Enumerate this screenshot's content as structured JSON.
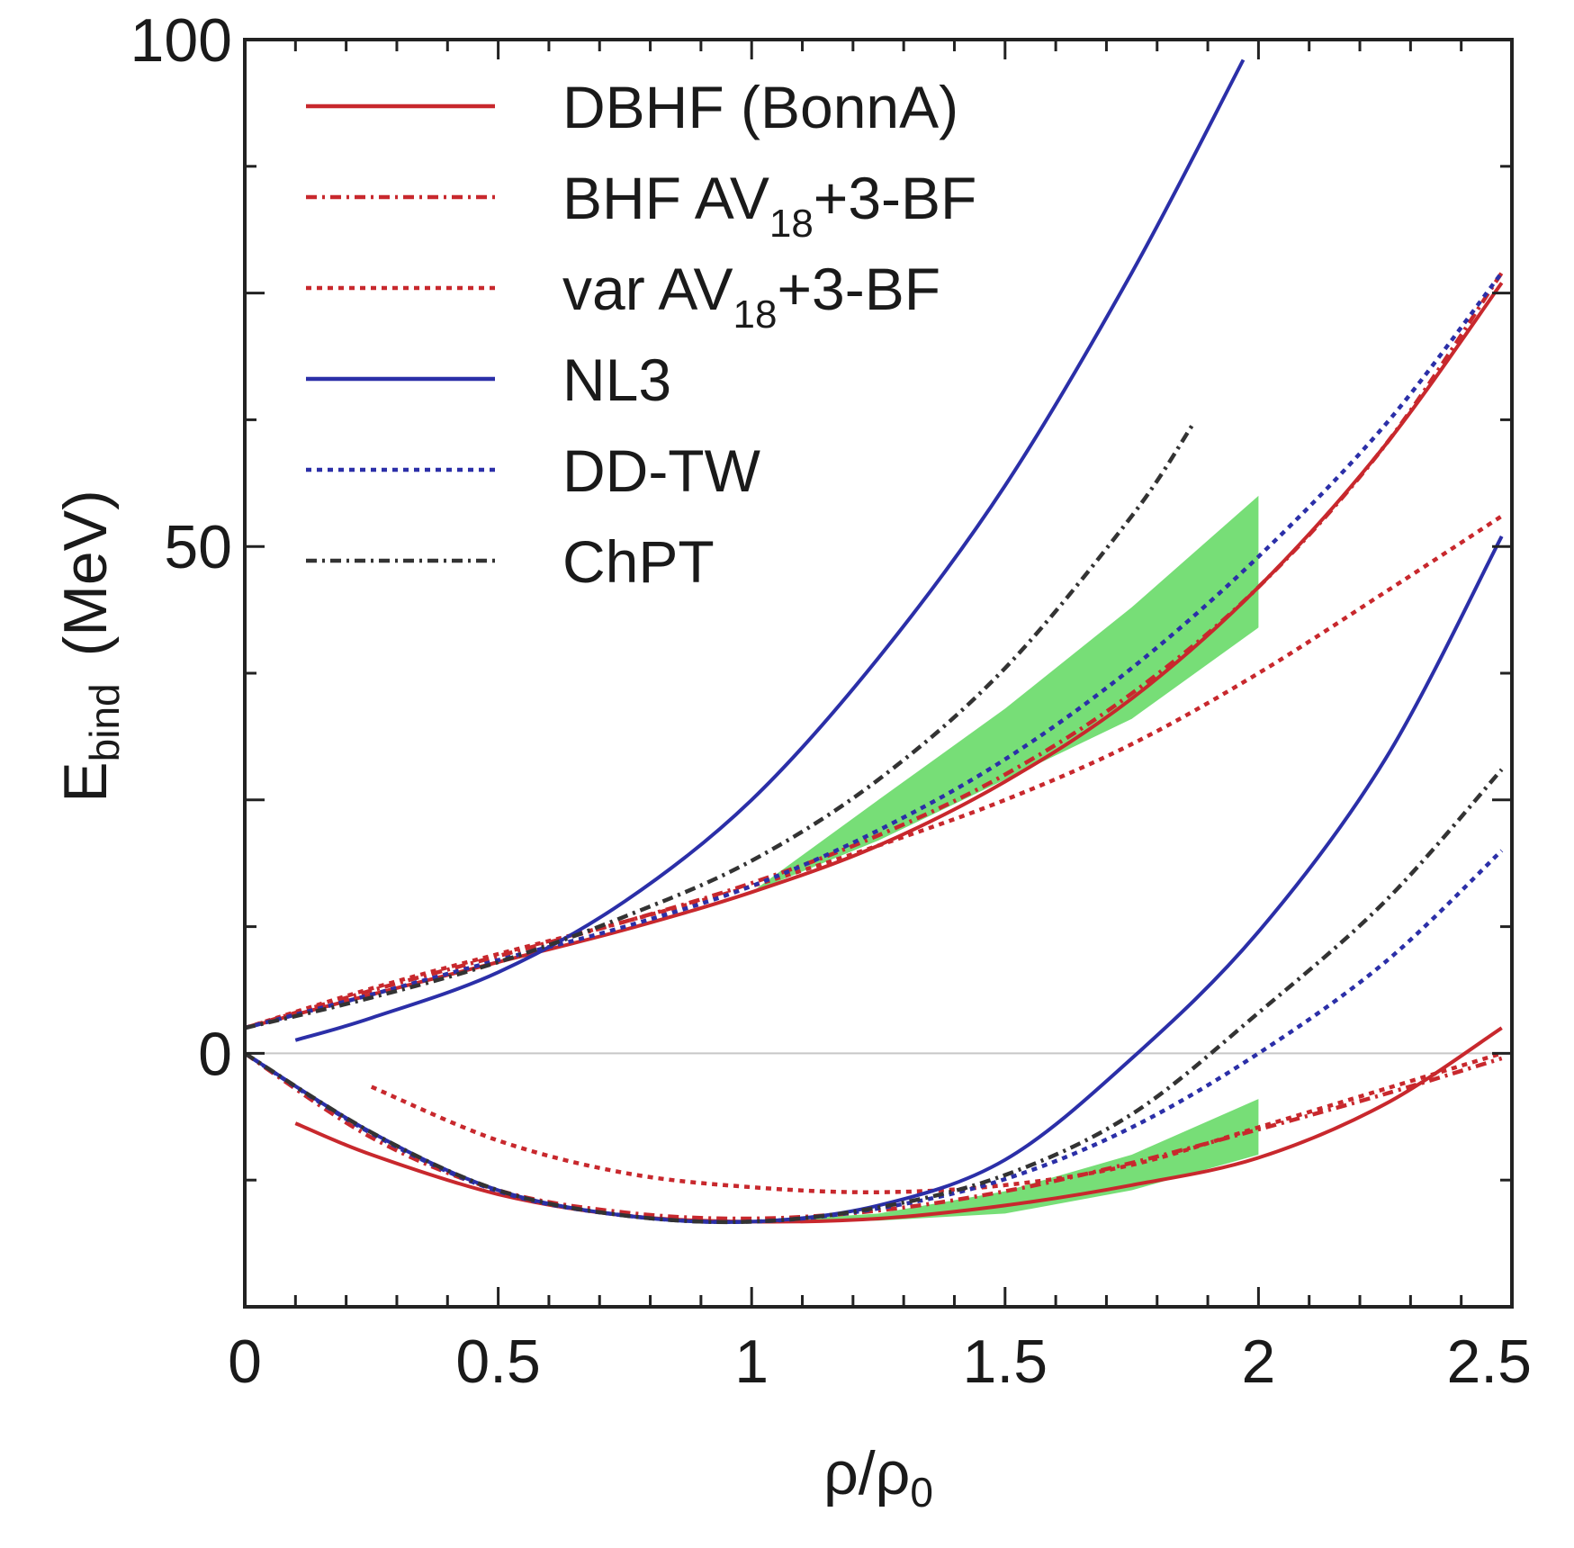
{
  "chart_data": {
    "type": "line",
    "xlabel": {
      "base": "ρ/ρ",
      "sub": "0"
    },
    "ylabel": {
      "base": "E",
      "sub": "bind",
      "unit": "(MeV)"
    },
    "xlim": [
      0,
      2.5
    ],
    "ylim": [
      -25,
      100
    ],
    "x_ticks": [
      {
        "value": 0,
        "label": "0"
      },
      {
        "value": 0.5,
        "label": "0.5"
      },
      {
        "value": 1,
        "label": "1"
      },
      {
        "value": 1.5,
        "label": "1.5"
      },
      {
        "value": 2,
        "label": "2"
      },
      {
        "value": 2.5,
        "label": "2.5"
      }
    ],
    "y_ticks": [
      {
        "value": 0,
        "label": "0"
      },
      {
        "value": 50,
        "label": "50"
      },
      {
        "value": 100,
        "label": "100"
      }
    ],
    "zero_line": true,
    "legend": {
      "position": "top-left",
      "items": [
        {
          "base": "DBHF (BonnA)",
          "sub": "",
          "rest": "",
          "color": "#c8282d",
          "dash": "solid"
        },
        {
          "base": "BHF AV",
          "sub": "18",
          "rest": "+3-BF",
          "color": "#c8282d",
          "dash": "dashdot"
        },
        {
          "base": "var AV",
          "sub": "18",
          "rest": "+3-BF",
          "color": "#c8282d",
          "dash": "dotted"
        },
        {
          "base": "NL3",
          "sub": "",
          "rest": "",
          "color": "#2b2fa8",
          "dash": "solid"
        },
        {
          "base": "DD-TW",
          "sub": "",
          "rest": "",
          "color": "#2b2fa8",
          "dash": "dotted"
        },
        {
          "base": "ChPT",
          "sub": "",
          "rest": "",
          "color": "#333333",
          "dash": "dashdot"
        }
      ]
    },
    "bands": [
      {
        "name": "neutron-matter-band",
        "color": "#5fd85f",
        "upper": [
          [
            1.0,
            15.9
          ],
          [
            1.25,
            25
          ],
          [
            1.5,
            34
          ],
          [
            1.75,
            44
          ],
          [
            2.0,
            55
          ]
        ],
        "lower": [
          [
            1.0,
            15.9
          ],
          [
            1.25,
            21
          ],
          [
            1.5,
            27
          ],
          [
            1.75,
            33
          ],
          [
            2.0,
            42
          ]
        ]
      },
      {
        "name": "symmetric-matter-band",
        "color": "#5fd85f",
        "upper": [
          [
            1.0,
            -16.6
          ],
          [
            1.25,
            -15.8
          ],
          [
            1.5,
            -13.6
          ],
          [
            1.75,
            -10
          ],
          [
            2.0,
            -4.5
          ]
        ],
        "lower": [
          [
            1.0,
            -16.6
          ],
          [
            1.25,
            -16.5
          ],
          [
            1.5,
            -15.8
          ],
          [
            1.75,
            -13.5
          ],
          [
            2.0,
            -10
          ]
        ]
      }
    ],
    "series": [
      {
        "legend_index": 0,
        "branch": "neutron",
        "color": "#c8282d",
        "dash": "solid",
        "x": [
          0.0,
          0.25,
          0.5,
          0.75,
          1.0,
          1.25,
          1.5,
          1.75,
          2.0,
          2.25,
          2.48
        ],
        "y": [
          2.5,
          5.8,
          9.0,
          12.2,
          15.9,
          20.5,
          26.8,
          35.0,
          46.0,
          60.0,
          76.0
        ]
      },
      {
        "legend_index": 1,
        "branch": "neutron",
        "color": "#c8282d",
        "dash": "dashdot",
        "x": [
          0.0,
          0.25,
          0.5,
          0.75,
          1.0,
          1.25,
          1.5,
          1.75,
          2.0,
          2.25,
          2.48
        ],
        "y": [
          2.5,
          6.2,
          9.6,
          13.0,
          16.8,
          21.5,
          27.5,
          35.5,
          46.0,
          60.0,
          77.0
        ]
      },
      {
        "legend_index": 2,
        "branch": "neutron",
        "color": "#c8282d",
        "dash": "dotted",
        "x": [
          0.0,
          0.25,
          0.5,
          0.75,
          1.0,
          1.25,
          1.5,
          1.75,
          2.0,
          2.25,
          2.48
        ],
        "y": [
          2.5,
          6.4,
          9.8,
          13.0,
          16.5,
          20.5,
          25.0,
          30.5,
          37.5,
          45.5,
          53.0
        ]
      },
      {
        "legend_index": 3,
        "branch": "neutron",
        "color": "#2b2fa8",
        "dash": "solid",
        "x": [
          0.1,
          0.25,
          0.5,
          0.75,
          1.0,
          1.25,
          1.5,
          1.75,
          1.97
        ],
        "y": [
          1.3,
          3.5,
          8.0,
          15.0,
          25.0,
          39.0,
          56.0,
          77.0,
          98.0
        ]
      },
      {
        "legend_index": 4,
        "branch": "neutron",
        "color": "#2b2fa8",
        "dash": "dotted",
        "x": [
          0.0,
          0.25,
          0.5,
          0.75,
          1.0,
          1.25,
          1.5,
          1.75,
          2.0,
          2.25,
          2.48
        ],
        "y": [
          2.5,
          5.8,
          9.2,
          12.5,
          16.5,
          22.0,
          29.0,
          38.0,
          49.0,
          62.0,
          77.0
        ]
      },
      {
        "legend_index": 5,
        "branch": "neutron",
        "color": "#333333",
        "dash": "dashdot",
        "x": [
          0.0,
          0.25,
          0.5,
          0.75,
          1.0,
          1.25,
          1.5,
          1.75,
          1.87
        ],
        "y": [
          2.5,
          5.5,
          9.0,
          13.5,
          19.0,
          27.0,
          38.0,
          53.0,
          62.0
        ]
      },
      {
        "legend_index": 0,
        "branch": "symmetric",
        "color": "#c8282d",
        "dash": "solid",
        "x": [
          0.1,
          0.25,
          0.5,
          0.75,
          1.0,
          1.25,
          1.5,
          1.75,
          2.0,
          2.25,
          2.48
        ],
        "y": [
          -6.9,
          -10.0,
          -13.9,
          -16.0,
          -16.6,
          -16.3,
          -15.0,
          -13.0,
          -10.3,
          -5.0,
          2.5
        ]
      },
      {
        "legend_index": 1,
        "branch": "symmetric",
        "color": "#c8282d",
        "dash": "dashdot",
        "x": [
          0.0,
          0.25,
          0.5,
          0.75,
          1.0,
          1.25,
          1.5,
          1.75,
          2.0,
          2.25,
          2.48
        ],
        "y": [
          0,
          -8.3,
          -13.5,
          -15.7,
          -16.3,
          -15.5,
          -13.6,
          -10.8,
          -7.5,
          -4.0,
          -0.5
        ]
      },
      {
        "legend_index": 2,
        "branch": "symmetric",
        "color": "#c8282d",
        "dash": "dotted",
        "x": [
          0.25,
          0.5,
          0.75,
          1.0,
          1.25,
          1.5,
          1.75,
          2.0,
          2.25,
          2.48
        ],
        "y": [
          -3.3,
          -8.6,
          -11.8,
          -13.2,
          -13.7,
          -13.0,
          -11.0,
          -7.3,
          -3.5,
          0.0
        ]
      },
      {
        "legend_index": 3,
        "branch": "symmetric",
        "color": "#2b2fa8",
        "dash": "solid",
        "x": [
          0.0,
          0.25,
          0.5,
          0.75,
          1.0,
          1.25,
          1.5,
          1.75,
          2.0,
          2.25,
          2.48
        ],
        "y": [
          0,
          -7.8,
          -13.5,
          -16.0,
          -16.6,
          -15.0,
          -10.5,
          -0.5,
          12.0,
          29.0,
          51.0
        ]
      },
      {
        "legend_index": 4,
        "branch": "symmetric",
        "color": "#2b2fa8",
        "dash": "dotted",
        "x": [
          0.0,
          0.25,
          0.5,
          0.75,
          1.0,
          1.25,
          1.5,
          1.75,
          2.0,
          2.25,
          2.48
        ],
        "y": [
          0,
          -7.9,
          -13.6,
          -16.0,
          -16.6,
          -15.3,
          -12.4,
          -7.3,
          0.0,
          9.0,
          20.0
        ]
      },
      {
        "legend_index": 5,
        "branch": "symmetric",
        "color": "#333333",
        "dash": "dashdot",
        "x": [
          0.0,
          0.25,
          0.5,
          0.75,
          1.0,
          1.25,
          1.5,
          1.75,
          2.0,
          2.25,
          2.48
        ],
        "y": [
          0,
          -7.8,
          -13.5,
          -16.0,
          -16.6,
          -15.2,
          -12.0,
          -6.0,
          4.0,
          15.0,
          28.0
        ]
      }
    ]
  }
}
